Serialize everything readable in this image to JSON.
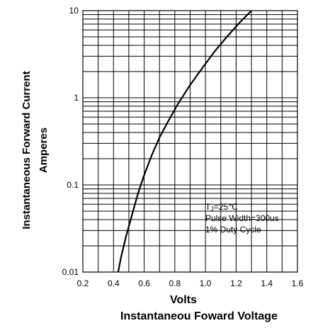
{
  "chart_data": {
    "type": "line",
    "title": "",
    "ylabel_line1": "Instantaneous Forward Current",
    "ylabel_line2": "Amperes",
    "xlabel": "Volts",
    "xlabel_sub": "Instantaneou Foward Voltage",
    "xlim": [
      0.2,
      1.6
    ],
    "ylim": [
      0.01,
      10
    ],
    "yscale": "log",
    "grid": true,
    "x_ticks": [
      "0.2",
      "0.4",
      "0.6",
      "0.8",
      "1.0",
      "1.2",
      "1.4",
      "1.6"
    ],
    "y_ticks": [
      "0.01",
      "0.1",
      "1",
      "10"
    ],
    "annotation": {
      "line1_main": "T",
      "line1_sub": "J",
      "line1_rest": "=25℃",
      "line2": "Pulse Width=300us",
      "line3": "1% Duty Cycle"
    },
    "series": [
      {
        "x": [
          0.43,
          0.45,
          0.48,
          0.52,
          0.56,
          0.6,
          0.65,
          0.7,
          0.76,
          0.82,
          0.9,
          0.98,
          1.06,
          1.14,
          1.22,
          1.3
        ],
        "y": [
          0.01,
          0.015,
          0.025,
          0.045,
          0.08,
          0.13,
          0.22,
          0.35,
          0.55,
          0.85,
          1.4,
          2.2,
          3.4,
          5.0,
          7.2,
          10.0
        ]
      }
    ]
  }
}
